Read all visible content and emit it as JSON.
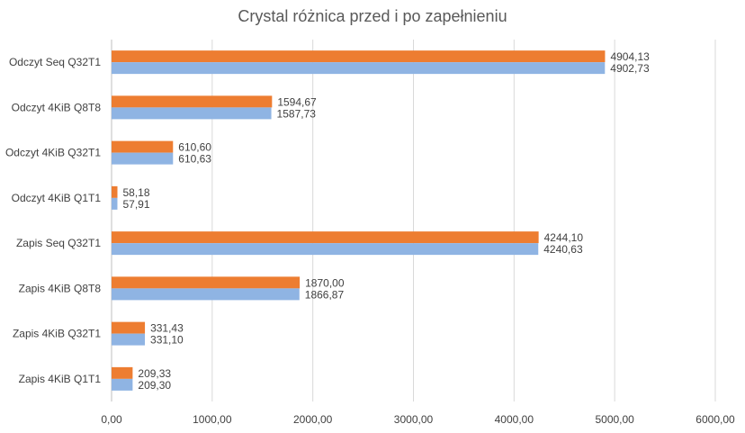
{
  "chart_data": {
    "type": "bar",
    "orientation": "horizontal",
    "title": "Crystal różnica przed i po zapełnieniu",
    "xlabel": "",
    "ylabel": "",
    "xlim": [
      0,
      6000
    ],
    "x_ticks": [
      0,
      1000,
      2000,
      3000,
      4000,
      5000,
      6000
    ],
    "x_tick_labels": [
      "0,00",
      "1000,00",
      "2000,00",
      "3000,00",
      "4000,00",
      "5000,00",
      "6000,00"
    ],
    "grid": true,
    "legend": "none",
    "categories": [
      "Odczyt Seq Q32T1",
      "Odczyt 4KiB Q8T8",
      "Odczyt 4KiB Q32T1",
      "Odczyt 4KiB Q1T1",
      "Zapis Seq Q32T1",
      "Zapis 4KiB Q8T8",
      "Zapis 4KiB Q32T1",
      "Zapis 4KiB Q1T1"
    ],
    "series": [
      {
        "name": "series-orange",
        "color": "#ED7D31",
        "values": [
          4904.13,
          1594.67,
          610.6,
          58.18,
          4244.1,
          1870.0,
          331.43,
          209.33
        ],
        "labels": [
          "4904,13",
          "1594,67",
          "610,60",
          "58,18",
          "4244,10",
          "1870,00",
          "331,43",
          "209,33"
        ]
      },
      {
        "name": "series-blue",
        "color": "#8FB4E3",
        "values": [
          4902.73,
          1587.73,
          610.63,
          57.91,
          4240.63,
          1866.87,
          331.1,
          209.3
        ],
        "labels": [
          "4902,73",
          "1587,73",
          "610,63",
          "57,91",
          "4240,63",
          "1866,87",
          "331,10",
          "209,30"
        ]
      }
    ]
  }
}
